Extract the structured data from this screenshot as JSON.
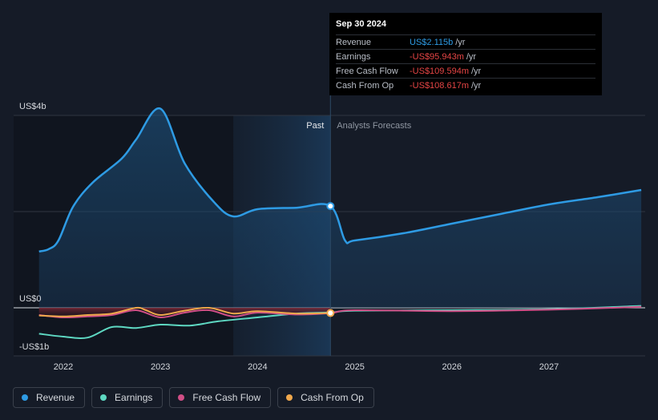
{
  "chart_data": {
    "type": "area",
    "y_axis": {
      "min": -1.0,
      "max": 4.0,
      "labels": [
        {
          "text": "US$4b",
          "value": 4.0
        },
        {
          "text": "US$0",
          "value": 0.0
        },
        {
          "text": "-US$1b",
          "value": -1.0
        }
      ]
    },
    "x_axis": {
      "min": 2021.6,
      "max": 2027.95,
      "ticks": [
        {
          "label": "2022",
          "value": 2022.0
        },
        {
          "label": "2023",
          "value": 2023.0
        },
        {
          "label": "2024",
          "value": 2024.0
        },
        {
          "label": "2025",
          "value": 2025.0
        },
        {
          "label": "2026",
          "value": 2026.0
        },
        {
          "label": "2027",
          "value": 2027.0
        }
      ]
    },
    "past_label": "Past",
    "forecast_label": "Analysts Forecasts",
    "divider_x": 2024.75,
    "highlight_start_x": 2023.75,
    "series": [
      {
        "name": "Revenue",
        "color": "#2e9be4",
        "fill": true,
        "points": [
          [
            2021.75,
            1.17
          ],
          [
            2021.85,
            1.22
          ],
          [
            2021.95,
            1.4
          ],
          [
            2022.1,
            2.1
          ],
          [
            2022.3,
            2.6
          ],
          [
            2022.6,
            3.1
          ],
          [
            2022.75,
            3.5
          ],
          [
            2023.0,
            4.14
          ],
          [
            2023.25,
            3.0
          ],
          [
            2023.55,
            2.2
          ],
          [
            2023.75,
            1.9
          ],
          [
            2024.0,
            2.05
          ],
          [
            2024.4,
            2.08
          ],
          [
            2024.75,
            2.115
          ],
          [
            2024.9,
            1.4
          ],
          [
            2025.0,
            1.4
          ],
          [
            2025.5,
            1.55
          ],
          [
            2026.0,
            1.75
          ],
          [
            2026.5,
            1.95
          ],
          [
            2027.0,
            2.15
          ],
          [
            2027.5,
            2.3
          ],
          [
            2027.95,
            2.45
          ]
        ]
      },
      {
        "name": "Earnings",
        "color": "#5ed8c2",
        "fill": false,
        "points": [
          [
            2021.75,
            -0.54
          ],
          [
            2022.0,
            -0.6
          ],
          [
            2022.25,
            -0.62
          ],
          [
            2022.5,
            -0.4
          ],
          [
            2022.75,
            -0.42
          ],
          [
            2023.0,
            -0.35
          ],
          [
            2023.3,
            -0.37
          ],
          [
            2023.6,
            -0.28
          ],
          [
            2024.0,
            -0.2
          ],
          [
            2024.4,
            -0.12
          ],
          [
            2024.75,
            -0.096
          ],
          [
            2025.0,
            -0.06
          ],
          [
            2026.0,
            -0.05
          ],
          [
            2027.0,
            -0.03
          ],
          [
            2027.95,
            0.04
          ]
        ]
      },
      {
        "name": "Free Cash Flow",
        "color": "#d04e86",
        "fill": false,
        "points": [
          [
            2021.75,
            -0.15
          ],
          [
            2022.0,
            -0.2
          ],
          [
            2022.25,
            -0.18
          ],
          [
            2022.5,
            -0.15
          ],
          [
            2022.75,
            -0.05
          ],
          [
            2023.0,
            -0.2
          ],
          [
            2023.25,
            -0.1
          ],
          [
            2023.5,
            -0.05
          ],
          [
            2023.75,
            -0.18
          ],
          [
            2024.0,
            -0.1
          ],
          [
            2024.4,
            -0.14
          ],
          [
            2024.75,
            -0.11
          ],
          [
            2025.0,
            -0.05
          ],
          [
            2026.0,
            -0.07
          ],
          [
            2027.0,
            -0.04
          ],
          [
            2027.95,
            0.02
          ]
        ]
      },
      {
        "name": "Cash From Op",
        "color": "#f0a84c",
        "fill": false,
        "points": [
          [
            2021.75,
            -0.16
          ],
          [
            2022.0,
            -0.18
          ],
          [
            2022.25,
            -0.15
          ],
          [
            2022.5,
            -0.12
          ],
          [
            2022.75,
            0.0
          ],
          [
            2022.85,
            -0.05
          ],
          [
            2023.0,
            -0.15
          ],
          [
            2023.25,
            -0.06
          ],
          [
            2023.5,
            0.0
          ],
          [
            2023.75,
            -0.12
          ],
          [
            2024.0,
            -0.07
          ],
          [
            2024.4,
            -0.12
          ],
          [
            2024.75,
            -0.109
          ]
        ]
      }
    ]
  },
  "tooltip": {
    "date": "Sep 30 2024",
    "rows": [
      {
        "label": "Revenue",
        "value": "US$2.115b",
        "unit": "/yr",
        "color": "#2e9be4"
      },
      {
        "label": "Earnings",
        "value": "-US$95.943m",
        "unit": "/yr",
        "color": "#e64545"
      },
      {
        "label": "Free Cash Flow",
        "value": "-US$109.594m",
        "unit": "/yr",
        "color": "#e64545"
      },
      {
        "label": "Cash From Op",
        "value": "-US$108.617m",
        "unit": "/yr",
        "color": "#e64545"
      }
    ]
  },
  "legend": [
    {
      "label": "Revenue",
      "color": "#2e9be4"
    },
    {
      "label": "Earnings",
      "color": "#5ed8c2"
    },
    {
      "label": "Free Cash Flow",
      "color": "#d04e86"
    },
    {
      "label": "Cash From Op",
      "color": "#f0a84c"
    }
  ]
}
